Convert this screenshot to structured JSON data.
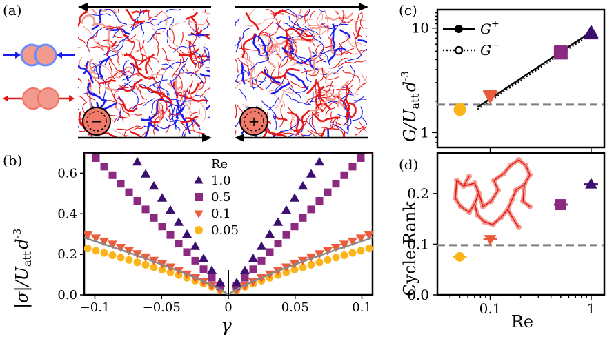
{
  "panel_labels": {
    "a": "(a)",
    "b": "(b)",
    "c": "(c)",
    "d": "(d)"
  },
  "colors": {
    "re_1": "#3b0f6f",
    "re_05": "#8c2981",
    "re_01": "#ea5c3b",
    "re_005": "#fcb519",
    "bond_red": "#e8171a",
    "bond_blue": "#1a1aee",
    "fit_line": "#888888",
    "dashed": "#7f7f7f",
    "particle_red": "#f39a8f",
    "particle_outline_blue": "#6a8cff"
  },
  "panel_a": {
    "description_icons": [
      "compressed-bond-icon",
      "stretched-bond-icon"
    ],
    "left_rotation_symbol": "−",
    "right_rotation_symbol": "+"
  },
  "chart_data": [
    {
      "id": "b",
      "type": "scatter",
      "title": "",
      "xlabel": "γ",
      "ylabel": "|σ|/U_att d^-3",
      "ylabel_parts": {
        "abs_sigma": "|σ|/",
        "U": "U",
        "att": "att",
        "d": "d",
        "exp": "-3"
      },
      "xlim": [
        -0.108,
        0.108
      ],
      "ylim": [
        0,
        0.7
      ],
      "xticks": [
        -0.1,
        -0.05,
        0,
        0.05,
        0.1
      ],
      "xtick_labels": [
        "−0.1",
        "−0.05",
        "0",
        "0.05",
        "0.1"
      ],
      "yticks": [
        0,
        0.2,
        0.4,
        0.6
      ],
      "ytick_labels": [
        "0.0",
        "0.2",
        "0.4",
        "0.6"
      ],
      "legend_title": "Re",
      "legend_position": "top-center",
      "series": [
        {
          "name": "1.0",
          "marker": "triangle-up",
          "color": "#3b0f6f",
          "slope": 9.6,
          "power": 1.0
        },
        {
          "name": "0.5",
          "marker": "square",
          "color": "#8c2981",
          "slope": 6.8,
          "power": 1.0
        },
        {
          "name": "0.1",
          "marker": "triangle-down",
          "color": "#ea5c3b",
          "slope": 2.05,
          "power": 0.86
        },
        {
          "name": "0.05",
          "marker": "circle",
          "color": "#fcb519",
          "slope": 1.45,
          "power": 0.82
        }
      ],
      "fit_curve": {
        "name": "fit",
        "slope": 1.75,
        "power": 0.82,
        "color": "#888888"
      }
    },
    {
      "id": "c",
      "type": "scatter",
      "xscale": "log",
      "yscale": "log",
      "xlabel": "",
      "ylabel": "G/U_att d^-3",
      "ylabel_parts": {
        "G": "G/",
        "U": "U",
        "att": "att",
        "d": "d",
        "exp": "-3"
      },
      "xlim": [
        0.03,
        1.35
      ],
      "ylim": [
        0.72,
        15
      ],
      "yticks": [
        1,
        10
      ],
      "ytick_labels": [
        "1",
        "10"
      ],
      "legend": [
        {
          "label": "G",
          "sup": "+",
          "style": "solid",
          "marker": "filled-circle"
        },
        {
          "label": "G",
          "sup": "−",
          "style": "dotted",
          "marker": "open-circle"
        }
      ],
      "legend_position": "top-left",
      "series": [
        {
          "name": "Re=0.05",
          "x": 0.05,
          "y": 1.7,
          "marker": "circle",
          "color": "#fcb519"
        },
        {
          "name": "Re=0.1",
          "x": 0.1,
          "y": 2.3,
          "marker": "triangle-down",
          "color": "#ea5c3b"
        },
        {
          "name": "Re=0.5",
          "x": 0.5,
          "y": 6.0,
          "marker": "square",
          "color": "#8c2981"
        },
        {
          "name": "Re=1",
          "x": 1.0,
          "y": 9.0,
          "marker": "triangle-up",
          "color": "#3b0f6f"
        }
      ],
      "fit_line": {
        "x": [
          0.075,
          1.0
        ],
        "y": [
          1.75,
          9.2
        ]
      },
      "dashed_hline": 1.85
    },
    {
      "id": "d",
      "type": "scatter",
      "xscale": "log",
      "xlabel": "Re",
      "ylabel": "Cycle Rank",
      "xlim": [
        0.03,
        1.35
      ],
      "ylim": [
        0,
        0.28
      ],
      "xticks": [
        0.1,
        1
      ],
      "xtick_labels": [
        "0.1",
        "1"
      ],
      "yticks": [
        0,
        0.1,
        0.2
      ],
      "ytick_labels": [
        "0.0",
        "0.1",
        "0.2"
      ],
      "series": [
        {
          "name": "Re=0.05",
          "x": 0.05,
          "y": 0.075,
          "marker": "circle",
          "color": "#fcb519"
        },
        {
          "name": "Re=0.1",
          "x": 0.1,
          "y": 0.11,
          "marker": "triangle-down",
          "color": "#ea5c3b"
        },
        {
          "name": "Re=0.5",
          "x": 0.5,
          "y": 0.178,
          "marker": "square",
          "color": "#8c2981"
        },
        {
          "name": "Re=1",
          "x": 1.0,
          "y": 0.218,
          "marker": "triangle-up",
          "color": "#3b0f6f"
        }
      ],
      "dashed_hline": 0.098
    }
  ]
}
